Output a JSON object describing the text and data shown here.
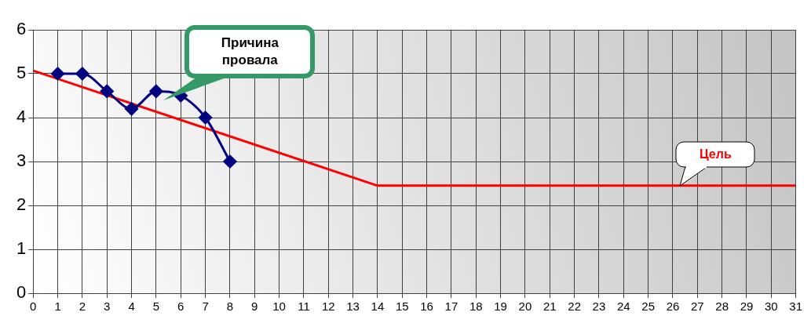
{
  "chart_data": {
    "type": "line",
    "xlim": [
      0,
      31
    ],
    "xticks": [
      0,
      1,
      2,
      3,
      4,
      5,
      6,
      7,
      8,
      9,
      10,
      11,
      12,
      13,
      14,
      15,
      16,
      17,
      18,
      19,
      20,
      21,
      22,
      23,
      24,
      25,
      26,
      27,
      28,
      29,
      30,
      31
    ],
    "ylim": [
      0,
      6
    ],
    "yticks": [
      0,
      1,
      2,
      3,
      4,
      5,
      6
    ],
    "grid": true,
    "legend": false,
    "series": [
      {
        "color": "#000080",
        "marker": "diamond",
        "x": [
          1,
          2,
          3,
          4,
          5,
          6,
          7,
          8
        ],
        "values": [
          5,
          5,
          4.6,
          4.2,
          4.6,
          4.5,
          4.0,
          3.0
        ]
      },
      {
        "color": "#ff0000",
        "marker": "none",
        "x": [
          0,
          14,
          31
        ],
        "values": [
          5.07,
          2.45,
          2.45
        ]
      }
    ],
    "annotations": [
      "Причина провала",
      {
        "text": "Цель",
        "x": 26.3,
        "y": 2.45
      }
    ]
  }
}
